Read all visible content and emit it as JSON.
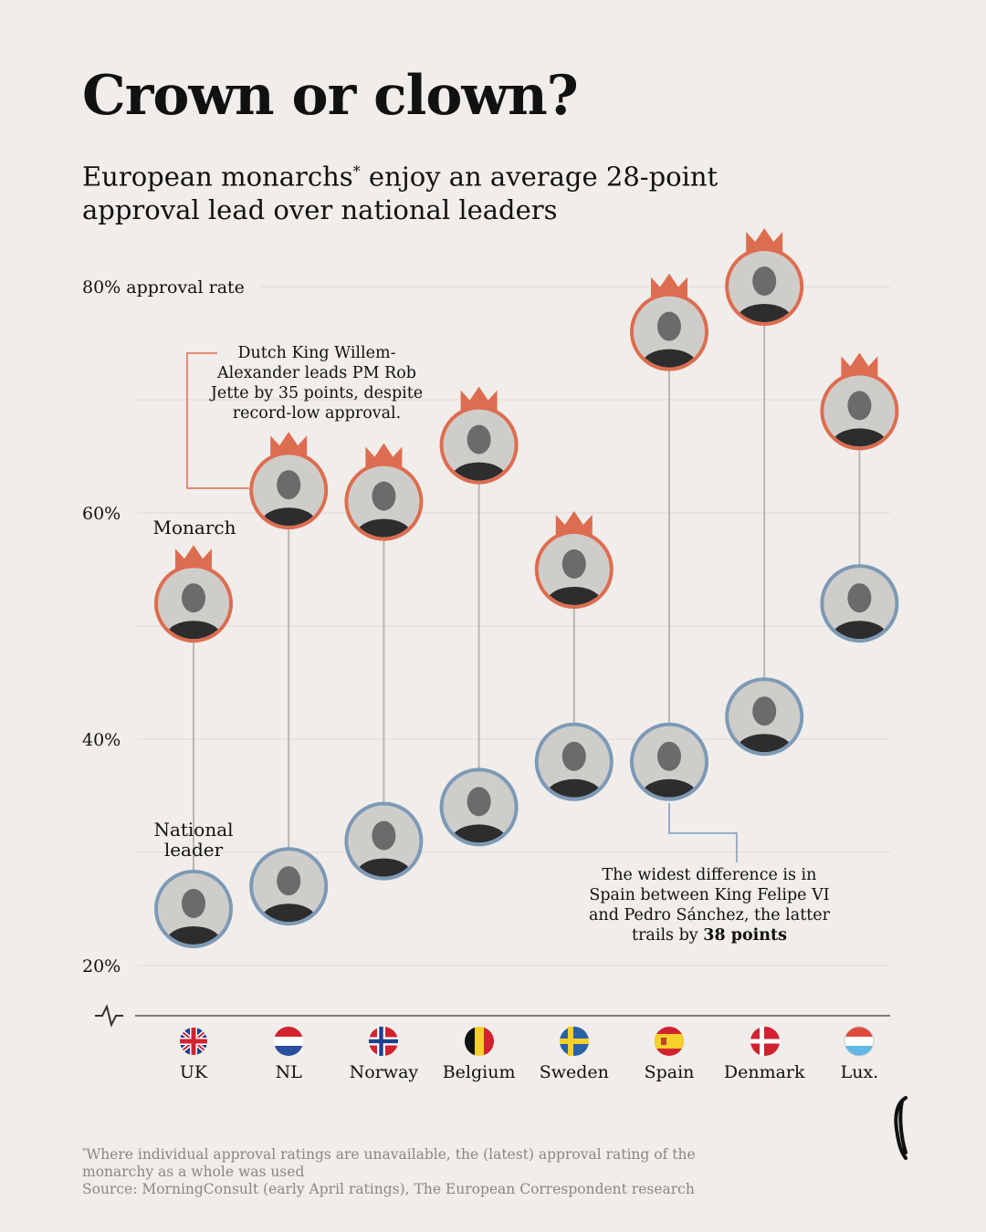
{
  "chart_data": {
    "type": "dumbbell",
    "title": "Crown or clown?",
    "subtitle": {
      "start": "European monarchs",
      "mark": "*",
      "end": " enjoy an average 28-point",
      "line2": "approval lead over national leaders"
    },
    "categories": [
      "UK",
      "NL",
      "Norway",
      "Belgium",
      "Sweden",
      "Spain",
      "Denmark",
      "Lux."
    ],
    "series": [
      {
        "name": "Monarch",
        "color": "#dd6d50",
        "values": [
          52,
          62,
          61,
          66,
          55,
          76,
          80,
          69
        ]
      },
      {
        "name": "National leader",
        "color": "#7d99b6",
        "values": [
          25,
          27,
          31,
          34,
          38,
          38,
          42,
          52
        ]
      }
    ],
    "ylim": [
      15,
      85
    ],
    "yticks": [
      {
        "value": 20,
        "label": "20%"
      },
      {
        "value": 40,
        "label": "40%"
      },
      {
        "value": 60,
        "label": "60%"
      },
      {
        "value": 80,
        "label": "80% approval rate"
      }
    ],
    "minor_gridlines": [
      30,
      50,
      70
    ],
    "grid": true,
    "annotations": [
      {
        "text": "Dutch King Willem-Alexander leads PM Rob Jette by 35 points, despite record-low approval."
      },
      {
        "text": "The widest difference is in Spain between King Felipe VI and Pedro Sánchez, the latter trails by",
        "bold": "38 points"
      }
    ],
    "footnote_mark": "*",
    "footnote": "Where individual approval ratings are unavailable, the (latest) approval rating of the monarchy as a whole was used",
    "source": "Source: MorningConsult (early April ratings), The European Correspondent research"
  }
}
